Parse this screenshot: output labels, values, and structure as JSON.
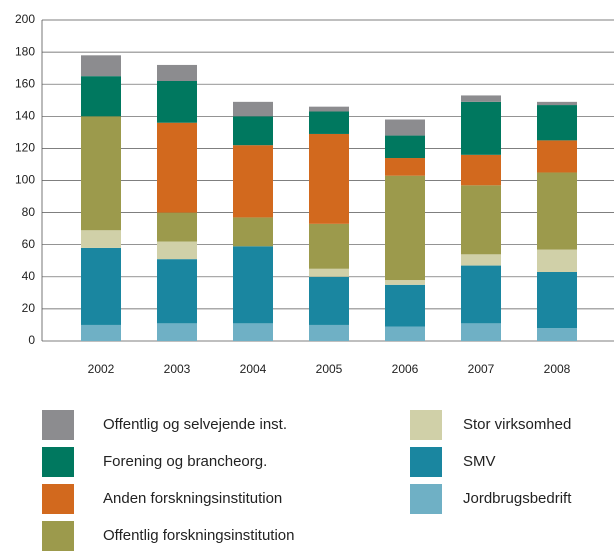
{
  "chart_data": {
    "type": "stacked_bar",
    "categories": [
      "2002",
      "2003",
      "2004",
      "2005",
      "2006",
      "2007",
      "2008"
    ],
    "series": [
      {
        "name": "Offentlig og selvejende inst.",
        "color": "#8c8c8f",
        "values": [
          13,
          10,
          9,
          3,
          10,
          4,
          2
        ]
      },
      {
        "name": "Forening og brancheorg.",
        "color": "#00785f",
        "values": [
          25,
          26,
          18,
          14,
          14,
          33,
          22
        ]
      },
      {
        "name": "Anden forskningsinstitution",
        "color": "#d2691e",
        "values": [
          0,
          56,
          45,
          56,
          11,
          19,
          20
        ]
      },
      {
        "name": "Offentlig forskningsinstitution",
        "color": "#9c9a4c",
        "values": [
          71,
          18,
          18,
          28,
          65,
          43,
          48
        ]
      },
      {
        "name": "Stor virksomhed",
        "color": "#d0d0a8",
        "values": [
          11,
          11,
          0,
          5,
          3,
          7,
          14
        ]
      },
      {
        "name": "SMV",
        "color": "#1a86a0",
        "values": [
          48,
          40,
          48,
          30,
          26,
          36,
          35
        ]
      },
      {
        "name": "Jordbrugsbedrift",
        "color": "#6fb0c5",
        "values": [
          10,
          11,
          11,
          10,
          9,
          11,
          8
        ]
      }
    ],
    "stack_order": "bottom-up-reverse",
    "ylim": [
      0,
      200
    ],
    "yticks": [
      0,
      20,
      40,
      60,
      80,
      100,
      120,
      140,
      160,
      180,
      200
    ],
    "grid": true
  }
}
